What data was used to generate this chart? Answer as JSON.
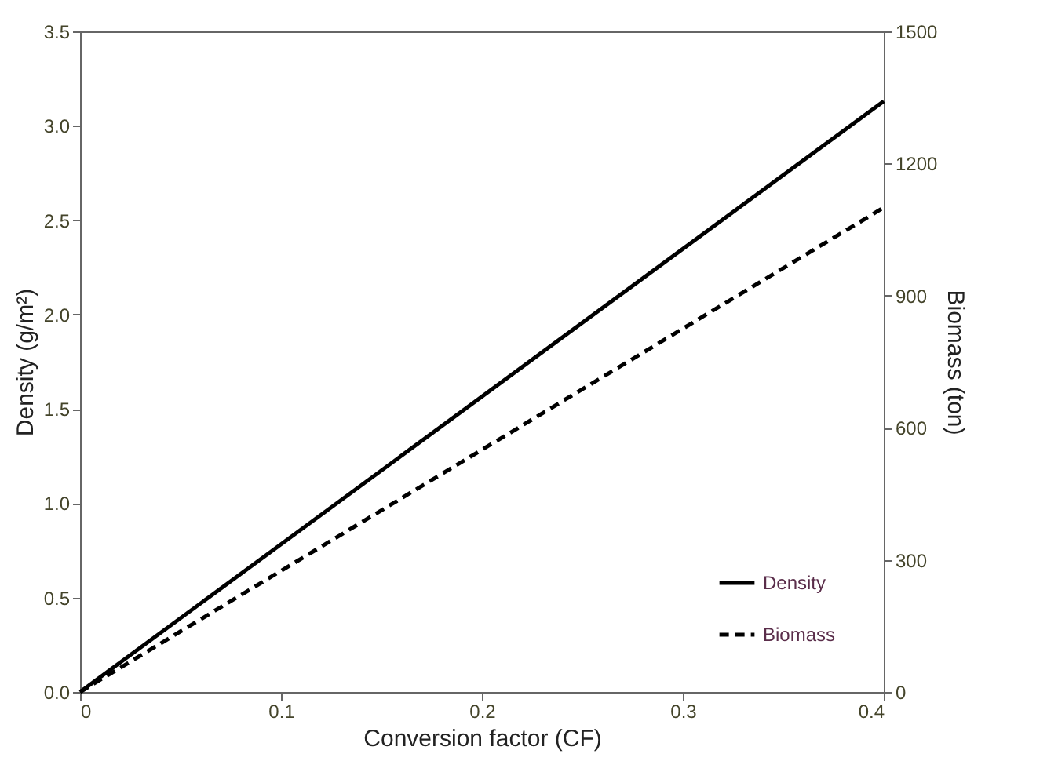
{
  "chart_data": {
    "type": "line",
    "xlabel": "Conversion factor (CF)",
    "ylabel": "Density (g/m²)",
    "y2label": "Biomass (ton)",
    "x": [
      0,
      0.4
    ],
    "series": [
      {
        "name": "Density",
        "color": "#000000",
        "line_style": "solid",
        "values": [
          0,
          3.13
        ]
      },
      {
        "name": "Biomass",
        "color": "#000000",
        "line_style": "dashed",
        "axis": "y2",
        "values": [
          0,
          1100
        ]
      }
    ],
    "xlim": [
      0,
      0.4
    ],
    "xticks": [
      0,
      0.1,
      0.2,
      0.3,
      0.4
    ],
    "ylim": [
      0,
      3.5
    ],
    "yticks": [
      {
        "value": 0,
        "label": "0.0"
      },
      0.5,
      {
        "value": 1,
        "label": "1.0"
      },
      1.5,
      {
        "value": 2,
        "label": "2.0"
      },
      2.5,
      {
        "value": 3,
        "label": "3.0"
      },
      3.5
    ],
    "y2lim": [
      0,
      1500
    ],
    "y2ticks": [
      0,
      300,
      600,
      900,
      1200,
      1500
    ],
    "grid": false,
    "legend": "bottom right",
    "marker": "none"
  }
}
